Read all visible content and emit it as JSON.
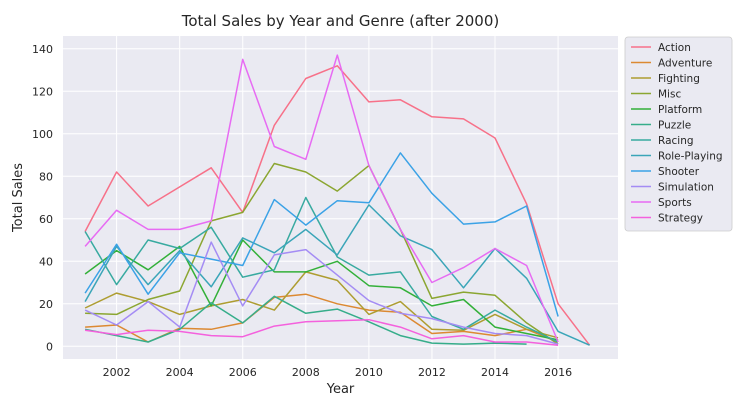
{
  "chart_data": {
    "type": "line",
    "title": "Total Sales by Year and Genre (after 2000)",
    "xlabel": "Year",
    "ylabel": "Total Sales",
    "xlim": [
      2000.3,
      2017.9
    ],
    "ylim": [
      -6,
      146
    ],
    "xticks": [
      2002,
      2004,
      2006,
      2008,
      2010,
      2012,
      2014,
      2016
    ],
    "yticks": [
      0,
      20,
      40,
      60,
      80,
      100,
      120,
      140
    ],
    "grid": true,
    "legend_position": "outside-right",
    "background": "#eaeaf2",
    "series": [
      {
        "name": "Action",
        "color": "#f77189",
        "points": [
          [
            2001,
            54
          ],
          [
            2002,
            82
          ],
          [
            2003,
            66
          ],
          [
            2004,
            75
          ],
          [
            2005,
            84
          ],
          [
            2006,
            63
          ],
          [
            2007,
            104
          ],
          [
            2008,
            126
          ],
          [
            2009,
            132
          ],
          [
            2010,
            115
          ],
          [
            2011,
            116
          ],
          [
            2012,
            108
          ],
          [
            2013,
            107
          ],
          [
            2014,
            98
          ],
          [
            2015,
            67
          ],
          [
            2016,
            20
          ],
          [
            2017,
            0.5
          ]
        ]
      },
      {
        "name": "Adventure",
        "color": "#dc8932",
        "points": [
          [
            2001,
            9
          ],
          [
            2002,
            10
          ],
          [
            2003,
            2
          ],
          [
            2004,
            8.5
          ],
          [
            2005,
            8
          ],
          [
            2006,
            11
          ],
          [
            2007,
            23
          ],
          [
            2008,
            24.5
          ],
          [
            2009,
            20
          ],
          [
            2010,
            17
          ],
          [
            2011,
            16
          ],
          [
            2012,
            6
          ],
          [
            2013,
            7
          ],
          [
            2014,
            5
          ],
          [
            2015,
            8
          ],
          [
            2016,
            2
          ]
        ]
      },
      {
        "name": "Fighting",
        "color": "#ae9d31",
        "points": [
          [
            2001,
            18
          ],
          [
            2002,
            25
          ],
          [
            2003,
            21
          ],
          [
            2004,
            15
          ],
          [
            2005,
            19
          ],
          [
            2006,
            22
          ],
          [
            2007,
            17
          ],
          [
            2008,
            35
          ],
          [
            2009,
            31
          ],
          [
            2010,
            15
          ],
          [
            2011,
            21
          ],
          [
            2012,
            8
          ],
          [
            2013,
            7.5
          ],
          [
            2014,
            15
          ],
          [
            2015,
            8
          ],
          [
            2016,
            4
          ]
        ]
      },
      {
        "name": "Misc",
        "color": "#8ba631",
        "points": [
          [
            2001,
            15.5
          ],
          [
            2002,
            15
          ],
          [
            2003,
            22
          ],
          [
            2004,
            26
          ],
          [
            2005,
            59
          ],
          [
            2006,
            63
          ],
          [
            2007,
            86
          ],
          [
            2008,
            82
          ],
          [
            2009,
            73
          ],
          [
            2010,
            85
          ],
          [
            2011,
            55
          ],
          [
            2012,
            22.5
          ],
          [
            2013,
            25.5
          ],
          [
            2014,
            24
          ],
          [
            2015,
            11
          ],
          [
            2016,
            1
          ]
        ]
      },
      {
        "name": "Platform",
        "color": "#33b039",
        "points": [
          [
            2001,
            34
          ],
          [
            2002,
            45
          ],
          [
            2003,
            36
          ],
          [
            2004,
            47
          ],
          [
            2005,
            19
          ],
          [
            2006,
            50
          ],
          [
            2007,
            35
          ],
          [
            2008,
            35
          ],
          [
            2009,
            40
          ],
          [
            2010,
            28.5
          ],
          [
            2011,
            27.5
          ],
          [
            2012,
            19
          ],
          [
            2013,
            22
          ],
          [
            2014,
            9
          ],
          [
            2015,
            6
          ],
          [
            2016,
            3
          ]
        ]
      },
      {
        "name": "Puzzle",
        "color": "#36ad8a",
        "points": [
          [
            2001,
            8
          ],
          [
            2002,
            5
          ],
          [
            2003,
            2
          ],
          [
            2004,
            8
          ],
          [
            2005,
            20.5
          ],
          [
            2006,
            11
          ],
          [
            2007,
            23.5
          ],
          [
            2008,
            15.5
          ],
          [
            2009,
            17.5
          ],
          [
            2010,
            11.5
          ],
          [
            2011,
            5
          ],
          [
            2012,
            1.5
          ],
          [
            2013,
            1
          ],
          [
            2014,
            1.5
          ],
          [
            2015,
            1
          ]
        ]
      },
      {
        "name": "Racing",
        "color": "#38aaa0",
        "points": [
          [
            2001,
            54
          ],
          [
            2002,
            29
          ],
          [
            2003,
            50
          ],
          [
            2004,
            46
          ],
          [
            2005,
            56
          ],
          [
            2006,
            32.5
          ],
          [
            2007,
            36
          ],
          [
            2008,
            70
          ],
          [
            2009,
            42
          ],
          [
            2010,
            33.5
          ],
          [
            2011,
            35
          ],
          [
            2012,
            14
          ],
          [
            2013,
            8
          ],
          [
            2014,
            17
          ],
          [
            2015,
            9
          ],
          [
            2016,
            2
          ]
        ]
      },
      {
        "name": "Role-Playing",
        "color": "#3aa5b8",
        "points": [
          [
            2001,
            21
          ],
          [
            2002,
            47
          ],
          [
            2003,
            29
          ],
          [
            2004,
            45
          ],
          [
            2005,
            28
          ],
          [
            2006,
            51
          ],
          [
            2007,
            44
          ],
          [
            2008,
            55
          ],
          [
            2009,
            43
          ],
          [
            2010,
            66.5
          ],
          [
            2011,
            52
          ],
          [
            2012,
            45.5
          ],
          [
            2013,
            27.5
          ],
          [
            2014,
            46
          ],
          [
            2015,
            32
          ],
          [
            2016,
            7
          ],
          [
            2017,
            0.5
          ]
        ]
      },
      {
        "name": "Shooter",
        "color": "#3ba2e6",
        "points": [
          [
            2001,
            25
          ],
          [
            2002,
            48
          ],
          [
            2003,
            24.5
          ],
          [
            2004,
            44
          ],
          [
            2005,
            41
          ],
          [
            2006,
            38
          ],
          [
            2007,
            69
          ],
          [
            2008,
            57
          ],
          [
            2009,
            68.5
          ],
          [
            2010,
            67.5
          ],
          [
            2011,
            91
          ],
          [
            2012,
            72
          ],
          [
            2013,
            57.5
          ],
          [
            2014,
            58.5
          ],
          [
            2015,
            66
          ],
          [
            2016,
            14
          ]
        ]
      },
      {
        "name": "Simulation",
        "color": "#a48cf4",
        "points": [
          [
            2001,
            17
          ],
          [
            2002,
            10
          ],
          [
            2003,
            21
          ],
          [
            2004,
            9
          ],
          [
            2005,
            49
          ],
          [
            2006,
            19
          ],
          [
            2007,
            43
          ],
          [
            2008,
            45.5
          ],
          [
            2009,
            33.5
          ],
          [
            2010,
            21.5
          ],
          [
            2011,
            15.5
          ],
          [
            2012,
            13
          ],
          [
            2013,
            9
          ],
          [
            2014,
            6
          ],
          [
            2015,
            5
          ],
          [
            2016,
            1
          ]
        ]
      },
      {
        "name": "Sports",
        "color": "#e76bf3",
        "points": [
          [
            2001,
            47
          ],
          [
            2002,
            64
          ],
          [
            2003,
            55
          ],
          [
            2004,
            55
          ],
          [
            2005,
            59
          ],
          [
            2006,
            135
          ],
          [
            2007,
            94
          ],
          [
            2008,
            88
          ],
          [
            2009,
            137
          ],
          [
            2010,
            85
          ],
          [
            2011,
            55
          ],
          [
            2012,
            30
          ],
          [
            2013,
            37
          ],
          [
            2014,
            46
          ],
          [
            2015,
            38
          ],
          [
            2016,
            2
          ]
        ]
      },
      {
        "name": "Strategy",
        "color": "#f461dd",
        "points": [
          [
            2001,
            7.5
          ],
          [
            2002,
            5.5
          ],
          [
            2003,
            7.5
          ],
          [
            2004,
            7
          ],
          [
            2005,
            5
          ],
          [
            2006,
            4.5
          ],
          [
            2007,
            9.5
          ],
          [
            2008,
            11.5
          ],
          [
            2009,
            12
          ],
          [
            2010,
            12.5
          ],
          [
            2011,
            9
          ],
          [
            2012,
            3.5
          ],
          [
            2013,
            5
          ],
          [
            2014,
            2
          ],
          [
            2015,
            2
          ],
          [
            2016,
            0.5
          ]
        ]
      }
    ]
  }
}
